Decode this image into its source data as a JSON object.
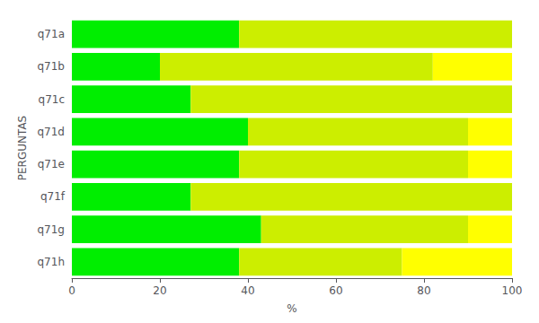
{
  "chart_data": {
    "type": "bar",
    "orientation": "horizontal",
    "stacked": true,
    "categories": [
      "q71a",
      "q71b",
      "q71c",
      "q71d",
      "q71e",
      "q71f",
      "q71g",
      "q71h"
    ],
    "series": [
      {
        "color": "#00EE00",
        "values": [
          38,
          20,
          27,
          40,
          38,
          27,
          43,
          38
        ]
      },
      {
        "color": "#CCEE00",
        "values": [
          62,
          62,
          73,
          50,
          52,
          73,
          47,
          37
        ]
      },
      {
        "color": "#FFFF00",
        "values": [
          0,
          18,
          0,
          10,
          10,
          0,
          10,
          25
        ]
      }
    ],
    "xlabel": "%",
    "ylabel": "PERGUNTAS",
    "xlim": [
      0,
      100
    ],
    "xticks": [
      0,
      20,
      40,
      60,
      80,
      100
    ],
    "grid": false
  }
}
